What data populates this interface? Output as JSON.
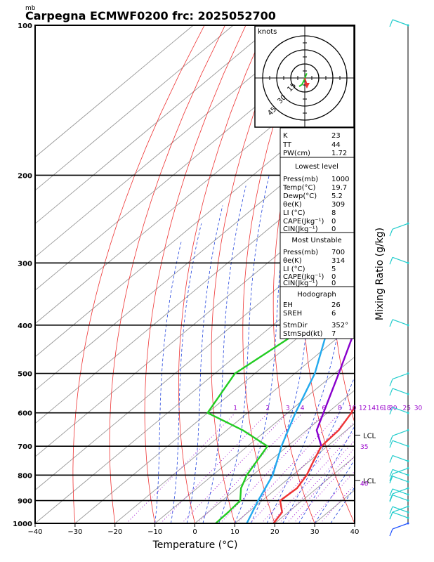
{
  "chart_data": {
    "type": "line",
    "title": "Carpegna ECMWF0200  frc: 2025052700",
    "pressure_unit": "mb",
    "xlabel": "Temperature (°C)",
    "right_label": "Mixing Ratio  (g/kg)",
    "xlim": [
      -40,
      40
    ],
    "ylim": [
      1000,
      100
    ],
    "x_ticks": [
      "−40",
      "−30",
      "−20",
      "−10",
      "0",
      "10",
      "20",
      "30",
      "40"
    ],
    "pressure_levels": [
      {
        "p": 100,
        "label": "100"
      },
      {
        "p": 200,
        "label": "200"
      },
      {
        "p": 300,
        "label": "300"
      },
      {
        "p": 400,
        "label": "400"
      },
      {
        "p": 500,
        "label": "500"
      },
      {
        "p": 600,
        "label": "600"
      },
      {
        "p": 700,
        "label": "700"
      },
      {
        "p": 800,
        "label": "800"
      },
      {
        "p": 900,
        "label": "900"
      },
      {
        "p": 1000,
        "label": "1000"
      }
    ],
    "mixing_ratio_labels": [
      "1",
      "2",
      "3",
      "4",
      "6",
      "8",
      "10",
      "12",
      "14",
      "16",
      "18",
      "20",
      "25",
      "30"
    ],
    "mixing_ratio_values": [
      1,
      2,
      3,
      4,
      6,
      8,
      10,
      12,
      14,
      16,
      18,
      20,
      25,
      30
    ],
    "series": [
      {
        "key": "temperature",
        "color": "#ee3333",
        "points": [
          [
            1000,
            19.7
          ],
          [
            950,
            18.5
          ],
          [
            900,
            14.5
          ],
          [
            850,
            15
          ],
          [
            800,
            13.5
          ],
          [
            750,
            11
          ],
          [
            700,
            8.5
          ],
          [
            650,
            8
          ],
          [
            600,
            6
          ],
          [
            550,
            2.8
          ],
          [
            500,
            -1
          ],
          [
            450,
            -6.5
          ],
          [
            400,
            -12
          ],
          [
            350,
            -18
          ],
          [
            300,
            -26
          ],
          [
            250,
            -36
          ],
          [
            200,
            -42
          ],
          [
            150,
            -48
          ],
          [
            100,
            -51
          ]
        ]
      },
      {
        "key": "dewpoint",
        "color": "#22cc22",
        "points": [
          [
            1000,
            5.2
          ],
          [
            950,
            5
          ],
          [
            900,
            4.5
          ],
          [
            850,
            1
          ],
          [
            800,
            -1.5
          ],
          [
            700,
            -5
          ],
          [
            650,
            -16
          ],
          [
            600,
            -30
          ],
          [
            500,
            -35
          ],
          [
            400,
            -31
          ],
          [
            350,
            -38
          ],
          [
            300,
            -47
          ],
          [
            250,
            -59
          ],
          [
            200,
            -69
          ],
          [
            150,
            -79
          ],
          [
            100,
            -90
          ]
        ]
      },
      {
        "key": "parcel",
        "color": "#8800cc",
        "points": [
          [
            700,
            8.5
          ],
          [
            650,
            2.5
          ],
          [
            600,
            -1
          ],
          [
            500,
            -9
          ],
          [
            400,
            -19
          ],
          [
            300,
            -34
          ],
          [
            200,
            -54
          ],
          [
            150,
            -67
          ],
          [
            110,
            -79
          ]
        ]
      },
      {
        "key": "wetbulb",
        "color": "#22aaee",
        "points": [
          [
            1000,
            13
          ],
          [
            900,
            9
          ],
          [
            800,
            5
          ],
          [
            700,
            -1.5
          ],
          [
            600,
            -8
          ],
          [
            500,
            -15
          ],
          [
            400,
            -26
          ],
          [
            300,
            -41
          ],
          [
            200,
            -60
          ],
          [
            150,
            -72
          ],
          [
            115,
            -82
          ]
        ]
      }
    ],
    "lcl_labels": [
      {
        "text": "LCL",
        "p": 820
      },
      {
        "text": "LCL",
        "p": 665
      }
    ],
    "right_values": [
      {
        "text": "35",
        "p": 700
      },
      {
        "text": "40",
        "p": 830
      }
    ],
    "hodograph": {
      "label": "knots",
      "ring_labels": [
        "15",
        "30",
        "45"
      ],
      "trace": [
        [
          2,
          5
        ],
        [
          1,
          2
        ],
        [
          -1,
          -3
        ],
        [
          -3,
          -7
        ],
        [
          -6,
          -9
        ]
      ]
    },
    "wind_barbs_count": 20
  },
  "indices": {
    "block1": [
      {
        "label": "K",
        "value": "23"
      },
      {
        "label": "TT",
        "value": "44"
      },
      {
        "label": "PW(cm)",
        "value": "1.72"
      }
    ],
    "lowest": {
      "header": "Lowest level",
      "rows": [
        {
          "label": "Press(mb)",
          "value": "1000"
        },
        {
          "label": "Temp(°C)",
          "value": "19.7"
        },
        {
          "label": "Dewp(°C)",
          "value": "5.2"
        },
        {
          "label": "θe(K)",
          "value": "309"
        },
        {
          "label": "LI (°C)",
          "value": "8"
        },
        {
          "label": "CAPE(Jkg⁻¹)",
          "value": "0"
        },
        {
          "label": "CIN(Jkg⁻¹)",
          "value": "0"
        }
      ]
    },
    "unstable": {
      "header": "Most Unstable",
      "rows": [
        {
          "label": "Press(mb)",
          "value": "700"
        },
        {
          "label": "θe(K)",
          "value": "314"
        },
        {
          "label": "LI (°C)",
          "value": "5"
        },
        {
          "label": "CAPE(Jkg⁻¹)",
          "value": "0"
        },
        {
          "label": "CIN(Jkg⁻¹)",
          "value": "0"
        }
      ]
    },
    "hodo": {
      "header": "Hodograph",
      "rows": [
        {
          "label": "EH",
          "value": "26"
        },
        {
          "label": "SREH",
          "value": "6"
        },
        {
          "label": "StmDir",
          "value": "352°"
        },
        {
          "label": "StmSpd(kt)",
          "value": "7"
        }
      ]
    }
  }
}
